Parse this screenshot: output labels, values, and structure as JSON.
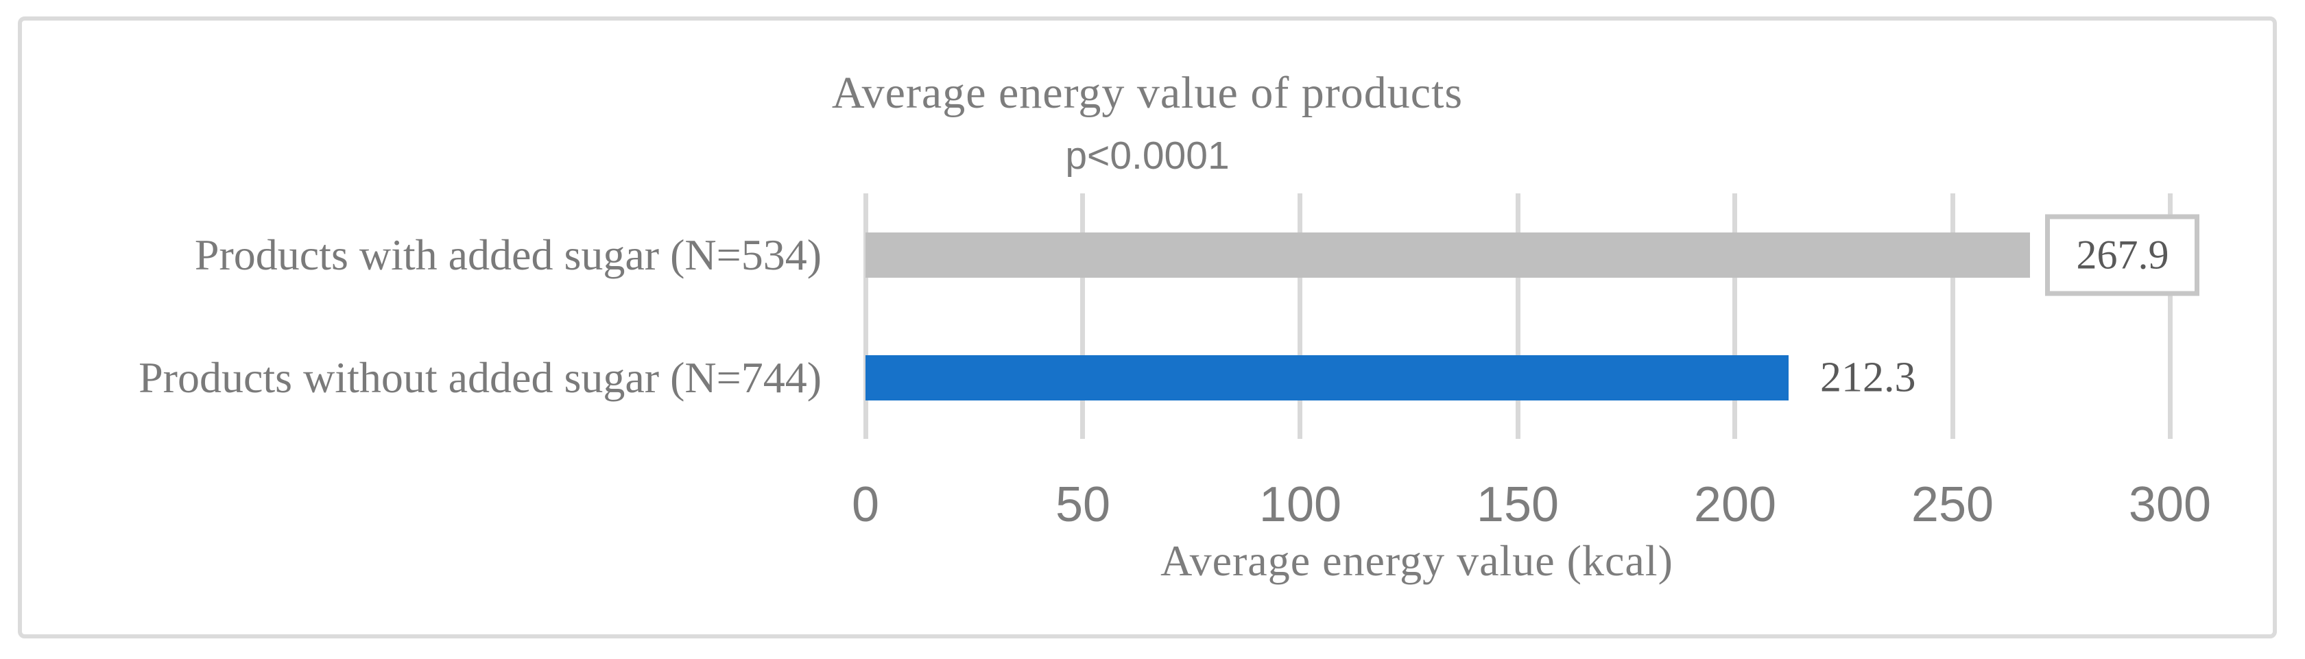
{
  "chart_data": {
    "type": "bar",
    "orientation": "horizontal",
    "title": "Average energy value of products",
    "subtitle": "p<0.0001",
    "categories": [
      "Products with added sugar (N=534)",
      "Products without added sugar (N=744)"
    ],
    "values": [
      267.9,
      212.3
    ],
    "value_labels": [
      "267.9",
      "212.3"
    ],
    "value_label_style": [
      "boxed",
      "plain"
    ],
    "series_colors": [
      "#BFBFBF",
      "#1772C9"
    ],
    "xlabel": "Average energy value (kcal)",
    "ylabel": "",
    "xlim": [
      0,
      300
    ],
    "xticks": [
      0,
      50,
      100,
      150,
      200,
      250,
      300
    ],
    "grid": true,
    "legend": false
  },
  "colors": {
    "background": "#FFFFFF",
    "frame_border": "#DBDBDB",
    "gridline": "#D9D9D9",
    "bar_with_sugar": "#BFBFBF",
    "bar_without_sugar": "#1772C9",
    "title_text": "#7D7D7D",
    "category_text": "#7A7A7A",
    "value_text": "#595959",
    "value_box_border": "#C6C6C6"
  }
}
